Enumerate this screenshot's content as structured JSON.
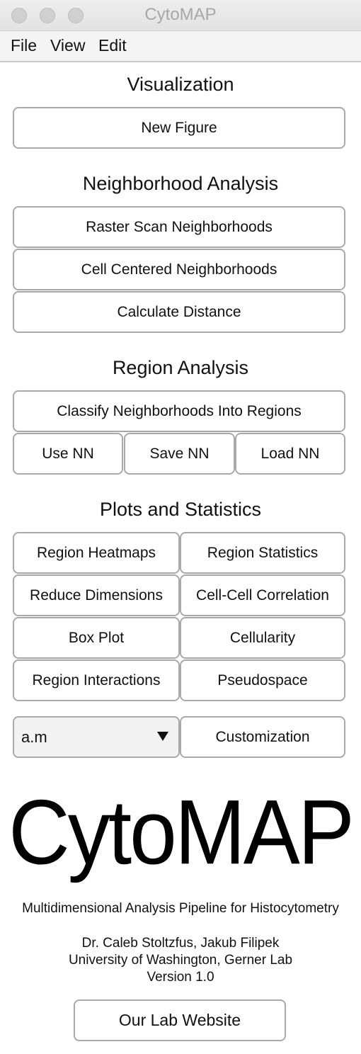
{
  "window": {
    "title": "CytoMAP"
  },
  "menu": {
    "file": "File",
    "view": "View",
    "edit": "Edit"
  },
  "sections": {
    "visualization": "Visualization",
    "neighborhood": "Neighborhood Analysis",
    "region": "Region Analysis",
    "plots": "Plots and Statistics"
  },
  "buttons": {
    "new_figure": "New Figure",
    "raster_scan": "Raster Scan Neighborhoods",
    "cell_centered": "Cell Centered Neighborhoods",
    "calc_distance": "Calculate Distance",
    "classify": "Classify Neighborhoods Into Regions",
    "use_nn": "Use NN",
    "save_nn": "Save NN",
    "load_nn": "Load NN",
    "region_heatmaps": "Region Heatmaps",
    "region_statistics": "Region Statistics",
    "reduce_dimensions": "Reduce Dimensions",
    "cell_cell_correlation": "Cell-Cell Correlation",
    "box_plot": "Box Plot",
    "cellularity": "Cellularity",
    "region_interactions": "Region Interactions",
    "pseudospace": "Pseudospace",
    "customization": "Customization",
    "lab_website": "Our Lab Website"
  },
  "dropdown": {
    "selected": "a.m"
  },
  "logo": "CytoMAP",
  "info": {
    "subtitle": "Multidimensional Analysis Pipeline for Histocytometry",
    "authors": "Dr. Caleb Stoltzfus, Jakub Filipek",
    "affiliation": "University of Washington, Gerner Lab",
    "version": "Version 1.0"
  }
}
